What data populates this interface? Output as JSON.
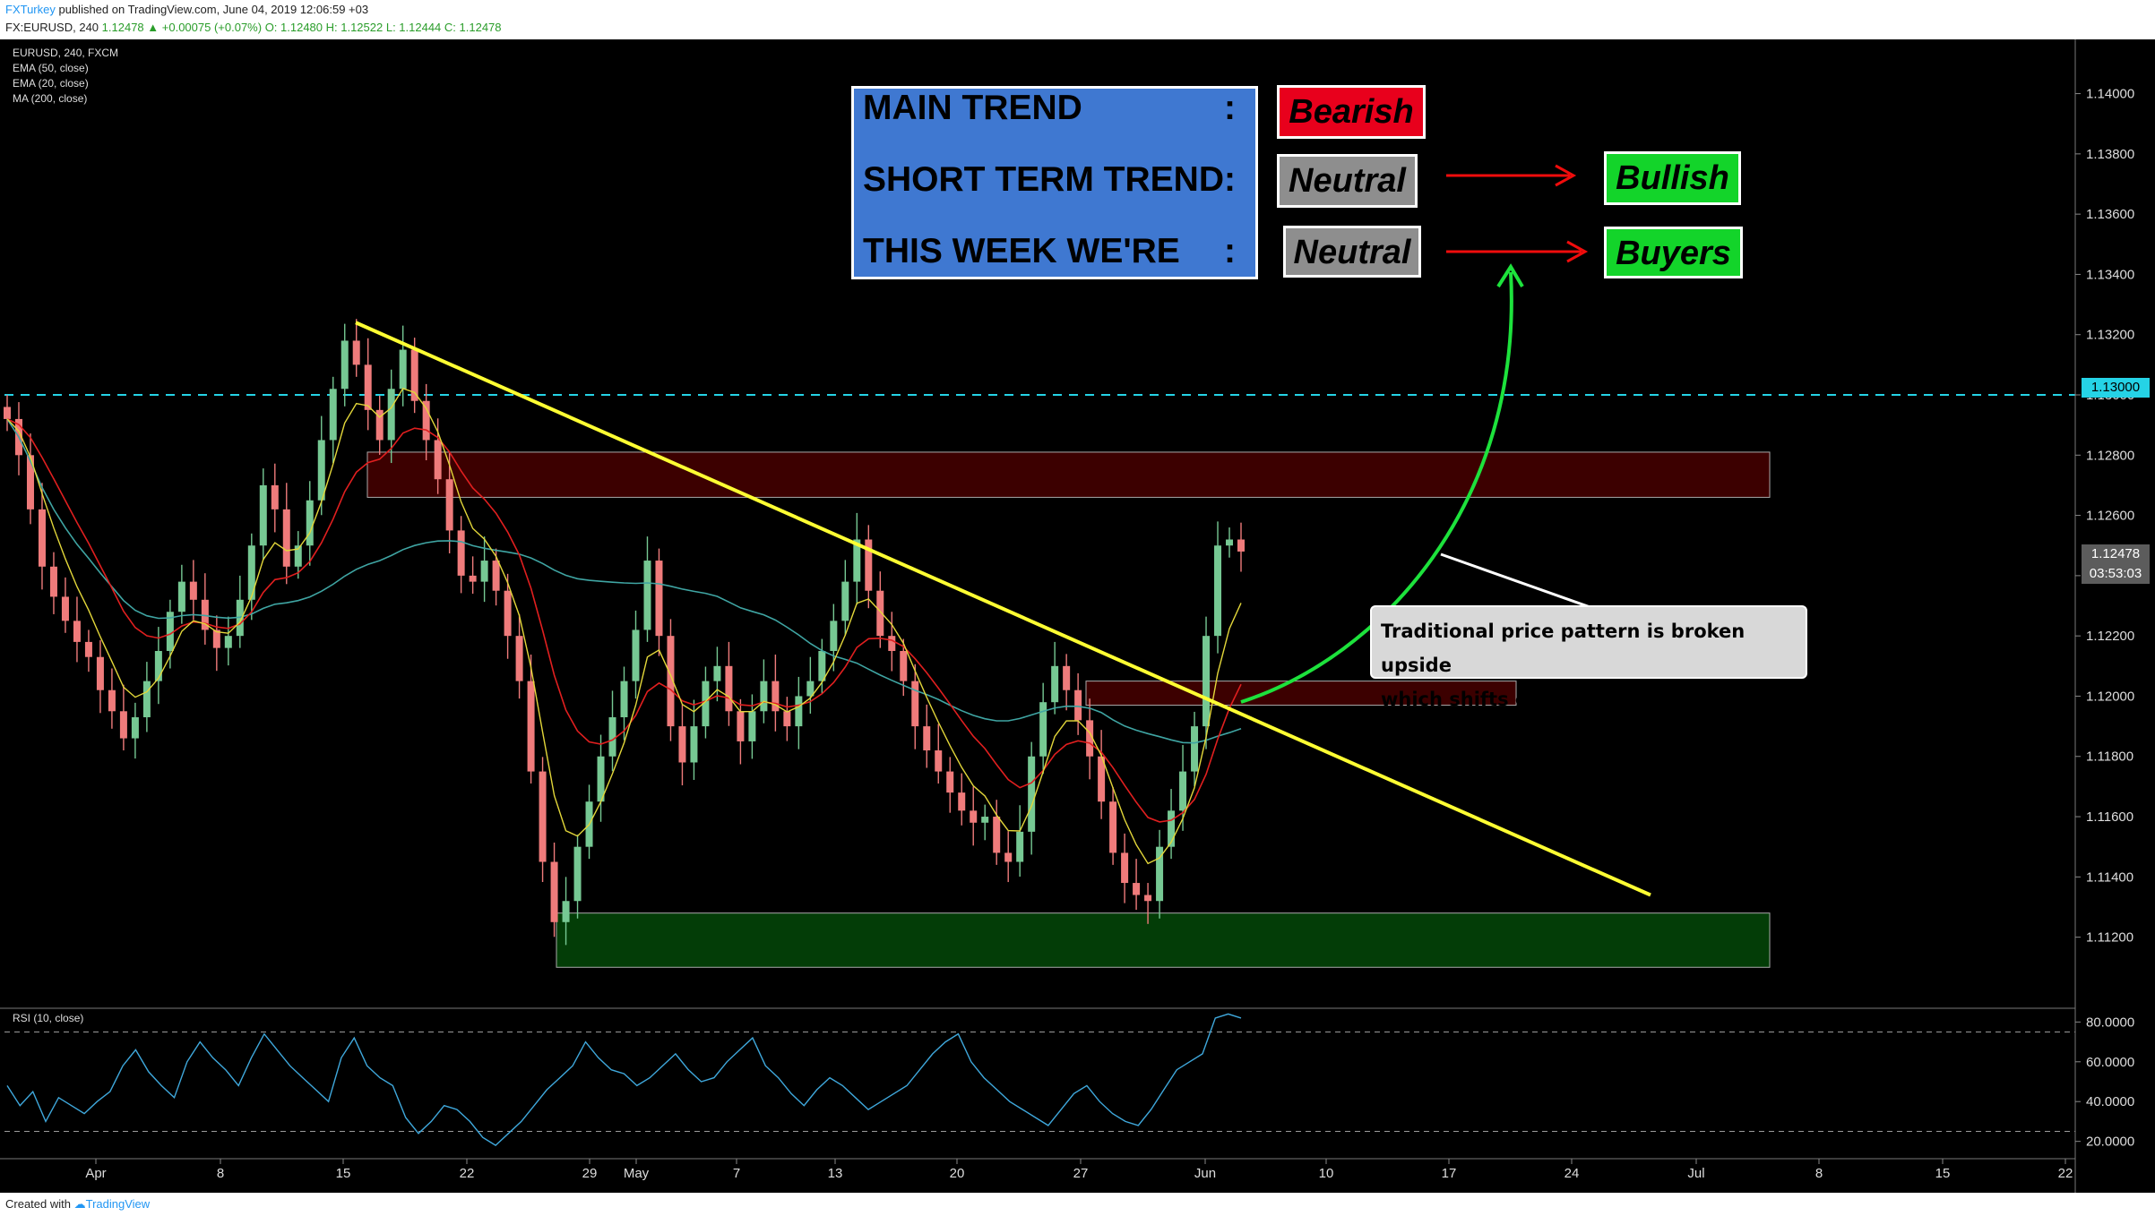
{
  "header": {
    "user": "FXTurkey",
    "published": "published on TradingView.com, June 04, 2019 12:06:59 +03",
    "symbol_line": "FX:EURUSD, 240",
    "quote_change": "1.12478 ▲ +0.00075 (+0.07%)",
    "ohlc": "O: 1.12480 H: 1.12522 L: 1.12444 C: 1.12478"
  },
  "legend": {
    "symbol": "EURUSD, 240, FXCM",
    "ema50": "EMA (50, close)",
    "ema20": "EMA (20, close)",
    "ma200": "MA (200, close)",
    "rsi": "RSI (10, close)"
  },
  "trend_table": {
    "rows": [
      {
        "label": "MAIN TREND",
        "colon": ":",
        "value": "Bearish"
      },
      {
        "label": "SHORT TERM TREND",
        "colon": ":",
        "value": "Neutral",
        "target": "Bullish"
      },
      {
        "label": "THIS WEEK WE'RE",
        "colon": ":",
        "value": "Neutral",
        "target": "Buyers"
      }
    ]
  },
  "annotation": {
    "line1": "Traditional price pattern is broken upside",
    "line2": "which shifts our bias for the week"
  },
  "price_tags": {
    "level": "1.13000",
    "last": "1.12478",
    "countdown": "03:53:03"
  },
  "footer": {
    "created": "Created with",
    "brand": "TradingView"
  },
  "colors": {
    "ema50": "#e01f1f",
    "ema20": "#e3d73a",
    "ma200": "#3fa5a3",
    "rsi": "#3fa8dc",
    "trendline": "#ffff33",
    "level_line": "#25d3e6",
    "resistance_zone": "#3c0000",
    "support_zone": "#033d07"
  },
  "chart_data": {
    "type": "line",
    "symbol": "EURUSD",
    "timeframe": "240",
    "y_ticks": [
      "1.14000",
      "1.13800",
      "1.13600",
      "1.13400",
      "1.13200",
      "1.13000",
      "1.12800",
      "1.12600",
      "1.12400",
      "1.12200",
      "1.12000",
      "1.11800",
      "1.11600",
      "1.11400",
      "1.11200"
    ],
    "ylim": [
      1.1097,
      1.1418
    ],
    "x_ticks": [
      "Apr",
      "8",
      "15",
      "22",
      "29",
      "May",
      "7",
      "13",
      "20",
      "27",
      "Jun",
      "10",
      "17",
      "24",
      "Jul",
      "8",
      "15",
      "22"
    ],
    "rsi_ticks": [
      "80.0000",
      "60.0000",
      "40.0000",
      "20.0000"
    ],
    "rsi_ylim": [
      14,
      86
    ],
    "horizontal_level": 1.13,
    "resistance_zone": [
      1.1266,
      1.1281
    ],
    "support_zone": [
      1.111,
      1.1128
    ],
    "small_resistance_zone": [
      1.1197,
      1.1205
    ],
    "trendline": [
      {
        "x": "Apr 15",
        "y": 1.1324
      },
      {
        "x": "Jun 28",
        "y": 1.1134
      }
    ],
    "close_series": [
      1.1292,
      1.128,
      1.1262,
      1.1243,
      1.1233,
      1.1225,
      1.1218,
      1.1213,
      1.1202,
      1.1195,
      1.1186,
      1.1193,
      1.1205,
      1.1215,
      1.1228,
      1.1238,
      1.1232,
      1.1222,
      1.1216,
      1.122,
      1.1232,
      1.125,
      1.127,
      1.1262,
      1.1243,
      1.125,
      1.1265,
      1.1285,
      1.1302,
      1.1318,
      1.131,
      1.1295,
      1.1285,
      1.1302,
      1.1315,
      1.1298,
      1.1285,
      1.1272,
      1.1255,
      1.124,
      1.1238,
      1.1245,
      1.1235,
      1.122,
      1.1205,
      1.1175,
      1.1145,
      1.1125,
      1.1132,
      1.115,
      1.1165,
      1.118,
      1.1193,
      1.1205,
      1.1222,
      1.1245,
      1.122,
      1.119,
      1.1178,
      1.119,
      1.1205,
      1.121,
      1.1195,
      1.1185,
      1.1195,
      1.1205,
      1.1195,
      1.119,
      1.12,
      1.1205,
      1.1215,
      1.1225,
      1.1238,
      1.1252,
      1.1235,
      1.122,
      1.1215,
      1.1205,
      1.119,
      1.1182,
      1.1175,
      1.1168,
      1.1162,
      1.1158,
      1.116,
      1.1148,
      1.1145,
      1.1155,
      1.118,
      1.1198,
      1.121,
      1.1202,
      1.1192,
      1.118,
      1.1165,
      1.1148,
      1.1138,
      1.1134,
      1.1132,
      1.115,
      1.1162,
      1.1175,
      1.119,
      1.122,
      1.125,
      1.1252,
      1.1248
    ],
    "rsi_series": [
      48,
      38,
      45,
      30,
      42,
      38,
      34,
      40,
      45,
      58,
      66,
      55,
      48,
      42,
      60,
      70,
      62,
      56,
      48,
      62,
      74,
      66,
      58,
      52,
      46,
      40,
      62,
      72,
      58,
      52,
      48,
      32,
      24,
      30,
      38,
      36,
      30,
      22,
      18,
      24,
      30,
      38,
      46,
      52,
      58,
      70,
      62,
      56,
      54,
      48,
      52,
      58,
      64,
      56,
      50,
      52,
      60,
      66,
      72,
      58,
      52,
      44,
      38,
      46,
      52,
      48,
      42,
      36,
      40,
      44,
      48,
      56,
      64,
      70,
      74,
      60,
      52,
      46,
      40,
      36,
      32,
      28,
      36,
      44,
      48,
      40,
      34,
      30,
      28,
      36,
      46,
      56,
      60,
      64,
      82,
      84,
      82
    ]
  }
}
